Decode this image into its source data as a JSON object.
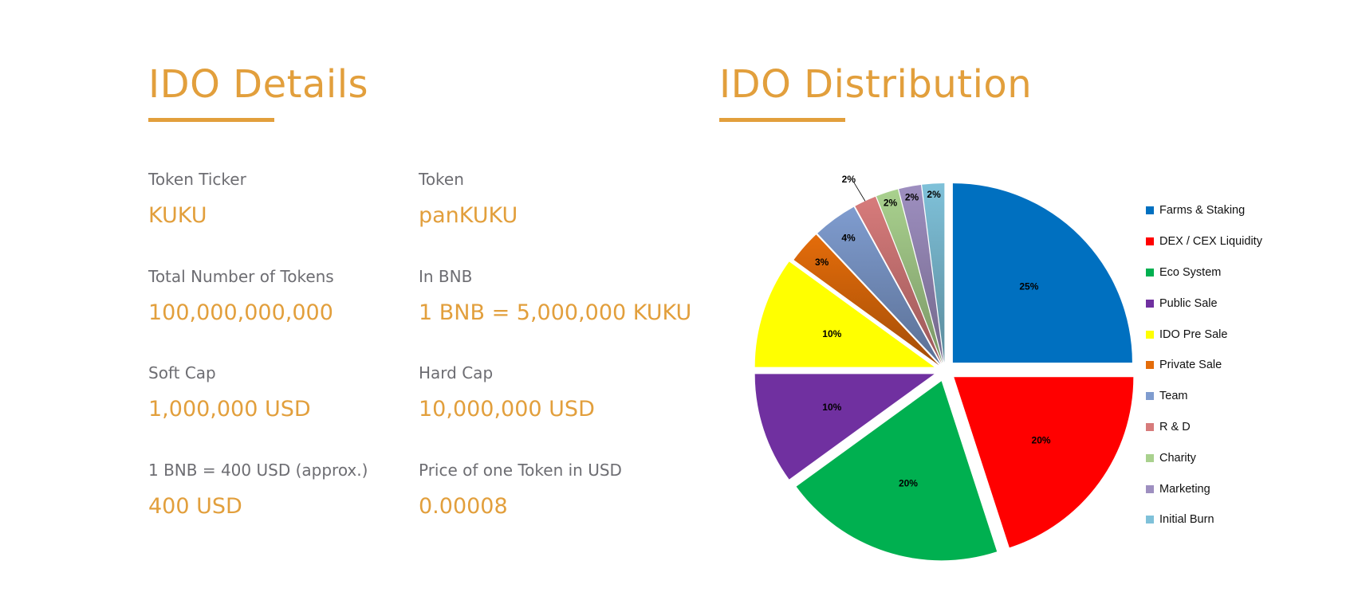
{
  "details": {
    "heading": "IDO Details",
    "items": [
      {
        "label": "Token Ticker",
        "value": "KUKU"
      },
      {
        "label": "Token",
        "value": "panKUKU"
      },
      {
        "label": "Total Number of Tokens",
        "value": "100,000,000,000"
      },
      {
        "label": "In BNB",
        "value": "1 BNB = 5,000,000 KUKU"
      },
      {
        "label": "Soft Cap",
        "value": "1,000,000 USD"
      },
      {
        "label": "Hard Cap",
        "value": "10,000,000 USD"
      },
      {
        "label": "1 BNB = 400 USD (approx.)",
        "value": "400 USD"
      },
      {
        "label": "Price of one Token in USD",
        "value": "0.00008"
      }
    ]
  },
  "distribution": {
    "heading": "IDO Distribution"
  },
  "colors": {
    "accent": "#e29f3c",
    "label_gray": "#6d6d72"
  },
  "chart_data": {
    "type": "pie",
    "title": "",
    "slices": [
      {
        "name": "Farms & Staking",
        "value": 25,
        "label": "25%",
        "color": "#0070c0"
      },
      {
        "name": "DEX / CEX Liquidity",
        "value": 20,
        "label": "20%",
        "color": "#ff0000"
      },
      {
        "name": "Eco System",
        "value": 20,
        "label": "20%",
        "color": "#00b050"
      },
      {
        "name": "Public Sale",
        "value": 10,
        "label": "10%",
        "color": "#7030a0"
      },
      {
        "name": "IDO Pre Sale",
        "value": 10,
        "label": "10%",
        "color": "#ffff00"
      },
      {
        "name": "Private Sale",
        "value": 3,
        "label": "3%",
        "color": "#e46c0a"
      },
      {
        "name": "Team",
        "value": 4,
        "label": "4%",
        "color": "#7f9ccf"
      },
      {
        "name": "R & D",
        "value": 2,
        "label": "2%",
        "color": "#d77b7b"
      },
      {
        "name": "Charity",
        "value": 2,
        "label": "2%",
        "color": "#a9d18e"
      },
      {
        "name": "Marketing",
        "value": 2,
        "label": "2%",
        "color": "#9e8fc0"
      },
      {
        "name": "Initial Burn",
        "value": 2,
        "label": "2%",
        "color": "#7fc1d9"
      }
    ],
    "legend_position": "right",
    "exploded": true
  }
}
